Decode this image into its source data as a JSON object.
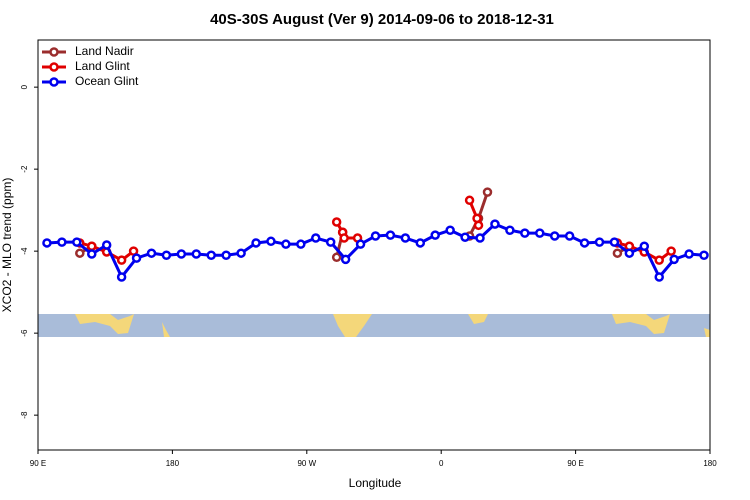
{
  "chart_data": {
    "type": "line",
    "title": "40S-30S August (Ver 9)   2014-09-06 to 2018-12-31",
    "x_label": "Longitude",
    "y_label": "XCO2 - MLO trend (ppm)",
    "xlim": [
      90,
      540
    ],
    "ylim": [
      -8.85,
      1.15
    ],
    "xticks": [
      {
        "value": 90,
        "label": "90 E"
      },
      180,
      {
        "value": 270,
        "label": "90 W"
      },
      {
        "value": 360,
        "label": "0"
      },
      {
        "value": 450,
        "label": "90 E"
      },
      {
        "value": 540,
        "label": "180"
      }
    ],
    "yticks": [
      0,
      -2,
      -4,
      -6,
      -8
    ],
    "legend": "top-left",
    "series": [
      {
        "name": "Land Nadir",
        "color": "#9b2d2d",
        "x": [
          118,
          126,
          null,
          290,
          294,
          null,
          379,
          385,
          391,
          null,
          478,
          486
        ],
        "values": [
          -4.05,
          -3.88,
          null,
          -4.15,
          -3.54,
          null,
          -3.63,
          -3.2,
          -2.56,
          null,
          -4.05,
          -3.88
        ]
      },
      {
        "name": "Land Glint",
        "color": "#e00000",
        "x": [
          118,
          126,
          136,
          146,
          154,
          null,
          290,
          294,
          295,
          304,
          null,
          379,
          384,
          385,
          null,
          478,
          486,
          496,
          506,
          514
        ],
        "values": [
          -3.8,
          -3.88,
          -4.02,
          -4.22,
          -4.0,
          null,
          -3.29,
          -3.54,
          -3.68,
          -3.68,
          null,
          -2.76,
          -3.2,
          -3.37,
          null,
          -3.8,
          -3.88,
          -4.02,
          -4.22,
          -4.0
        ]
      },
      {
        "name": "Ocean Glint",
        "color": "#0000ee",
        "x": [
          96,
          106,
          116,
          126,
          136,
          146,
          156,
          166,
          176,
          186,
          196,
          206,
          216,
          226,
          236,
          246,
          256,
          266,
          276,
          286,
          296,
          306,
          316,
          326,
          336,
          346,
          356,
          366,
          376,
          386,
          396,
          406,
          416,
          426,
          436,
          446,
          456,
          466,
          476,
          486,
          496,
          506,
          516,
          526,
          536
        ],
        "values": [
          -3.8,
          -3.78,
          -3.78,
          -4.07,
          -3.85,
          -4.63,
          -4.17,
          -4.05,
          -4.1,
          -4.07,
          -4.07,
          -4.1,
          -4.1,
          -4.05,
          -3.8,
          -3.76,
          -3.83,
          -3.83,
          -3.68,
          -3.78,
          -4.2,
          -3.83,
          -3.63,
          -3.61,
          -3.68,
          -3.8,
          -3.61,
          -3.49,
          -3.66,
          -3.68,
          -3.34,
          -3.49,
          -3.56,
          -3.56,
          -3.63,
          -3.63,
          -3.8,
          -3.78,
          -3.78,
          -4.05,
          -3.88,
          -4.63,
          -4.2,
          -4.07,
          -4.1
        ]
      }
    ]
  }
}
